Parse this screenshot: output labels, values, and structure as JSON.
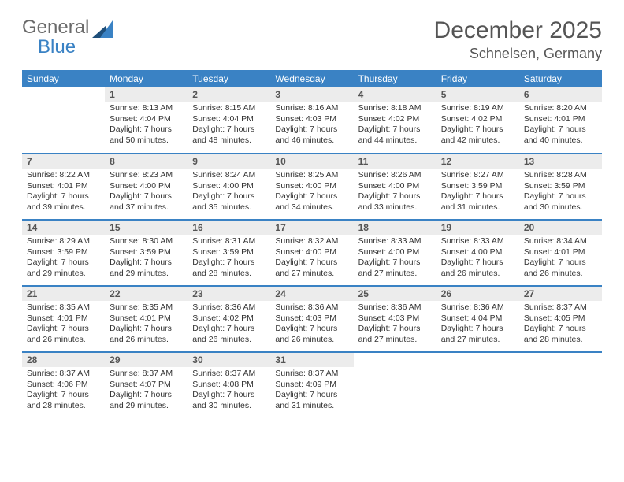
{
  "logo": {
    "line1": "General",
    "line2": "Blue"
  },
  "title": "December 2025",
  "location": "Schnelsen, Germany",
  "colors": {
    "header_bg": "#3a82c4",
    "header_text": "#ffffff",
    "daynum_bg": "#ececec",
    "text": "#333333",
    "row_border": "#3a82c4"
  },
  "weekdays": [
    "Sunday",
    "Monday",
    "Tuesday",
    "Wednesday",
    "Thursday",
    "Friday",
    "Saturday"
  ],
  "weeks": [
    [
      null,
      {
        "d": "1",
        "sr": "Sunrise: 8:13 AM",
        "ss": "Sunset: 4:04 PM",
        "dl1": "Daylight: 7 hours",
        "dl2": "and 50 minutes."
      },
      {
        "d": "2",
        "sr": "Sunrise: 8:15 AM",
        "ss": "Sunset: 4:04 PM",
        "dl1": "Daylight: 7 hours",
        "dl2": "and 48 minutes."
      },
      {
        "d": "3",
        "sr": "Sunrise: 8:16 AM",
        "ss": "Sunset: 4:03 PM",
        "dl1": "Daylight: 7 hours",
        "dl2": "and 46 minutes."
      },
      {
        "d": "4",
        "sr": "Sunrise: 8:18 AM",
        "ss": "Sunset: 4:02 PM",
        "dl1": "Daylight: 7 hours",
        "dl2": "and 44 minutes."
      },
      {
        "d": "5",
        "sr": "Sunrise: 8:19 AM",
        "ss": "Sunset: 4:02 PM",
        "dl1": "Daylight: 7 hours",
        "dl2": "and 42 minutes."
      },
      {
        "d": "6",
        "sr": "Sunrise: 8:20 AM",
        "ss": "Sunset: 4:01 PM",
        "dl1": "Daylight: 7 hours",
        "dl2": "and 40 minutes."
      }
    ],
    [
      {
        "d": "7",
        "sr": "Sunrise: 8:22 AM",
        "ss": "Sunset: 4:01 PM",
        "dl1": "Daylight: 7 hours",
        "dl2": "and 39 minutes."
      },
      {
        "d": "8",
        "sr": "Sunrise: 8:23 AM",
        "ss": "Sunset: 4:00 PM",
        "dl1": "Daylight: 7 hours",
        "dl2": "and 37 minutes."
      },
      {
        "d": "9",
        "sr": "Sunrise: 8:24 AM",
        "ss": "Sunset: 4:00 PM",
        "dl1": "Daylight: 7 hours",
        "dl2": "and 35 minutes."
      },
      {
        "d": "10",
        "sr": "Sunrise: 8:25 AM",
        "ss": "Sunset: 4:00 PM",
        "dl1": "Daylight: 7 hours",
        "dl2": "and 34 minutes."
      },
      {
        "d": "11",
        "sr": "Sunrise: 8:26 AM",
        "ss": "Sunset: 4:00 PM",
        "dl1": "Daylight: 7 hours",
        "dl2": "and 33 minutes."
      },
      {
        "d": "12",
        "sr": "Sunrise: 8:27 AM",
        "ss": "Sunset: 3:59 PM",
        "dl1": "Daylight: 7 hours",
        "dl2": "and 31 minutes."
      },
      {
        "d": "13",
        "sr": "Sunrise: 8:28 AM",
        "ss": "Sunset: 3:59 PM",
        "dl1": "Daylight: 7 hours",
        "dl2": "and 30 minutes."
      }
    ],
    [
      {
        "d": "14",
        "sr": "Sunrise: 8:29 AM",
        "ss": "Sunset: 3:59 PM",
        "dl1": "Daylight: 7 hours",
        "dl2": "and 29 minutes."
      },
      {
        "d": "15",
        "sr": "Sunrise: 8:30 AM",
        "ss": "Sunset: 3:59 PM",
        "dl1": "Daylight: 7 hours",
        "dl2": "and 29 minutes."
      },
      {
        "d": "16",
        "sr": "Sunrise: 8:31 AM",
        "ss": "Sunset: 3:59 PM",
        "dl1": "Daylight: 7 hours",
        "dl2": "and 28 minutes."
      },
      {
        "d": "17",
        "sr": "Sunrise: 8:32 AM",
        "ss": "Sunset: 4:00 PM",
        "dl1": "Daylight: 7 hours",
        "dl2": "and 27 minutes."
      },
      {
        "d": "18",
        "sr": "Sunrise: 8:33 AM",
        "ss": "Sunset: 4:00 PM",
        "dl1": "Daylight: 7 hours",
        "dl2": "and 27 minutes."
      },
      {
        "d": "19",
        "sr": "Sunrise: 8:33 AM",
        "ss": "Sunset: 4:00 PM",
        "dl1": "Daylight: 7 hours",
        "dl2": "and 26 minutes."
      },
      {
        "d": "20",
        "sr": "Sunrise: 8:34 AM",
        "ss": "Sunset: 4:01 PM",
        "dl1": "Daylight: 7 hours",
        "dl2": "and 26 minutes."
      }
    ],
    [
      {
        "d": "21",
        "sr": "Sunrise: 8:35 AM",
        "ss": "Sunset: 4:01 PM",
        "dl1": "Daylight: 7 hours",
        "dl2": "and 26 minutes."
      },
      {
        "d": "22",
        "sr": "Sunrise: 8:35 AM",
        "ss": "Sunset: 4:01 PM",
        "dl1": "Daylight: 7 hours",
        "dl2": "and 26 minutes."
      },
      {
        "d": "23",
        "sr": "Sunrise: 8:36 AM",
        "ss": "Sunset: 4:02 PM",
        "dl1": "Daylight: 7 hours",
        "dl2": "and 26 minutes."
      },
      {
        "d": "24",
        "sr": "Sunrise: 8:36 AM",
        "ss": "Sunset: 4:03 PM",
        "dl1": "Daylight: 7 hours",
        "dl2": "and 26 minutes."
      },
      {
        "d": "25",
        "sr": "Sunrise: 8:36 AM",
        "ss": "Sunset: 4:03 PM",
        "dl1": "Daylight: 7 hours",
        "dl2": "and 27 minutes."
      },
      {
        "d": "26",
        "sr": "Sunrise: 8:36 AM",
        "ss": "Sunset: 4:04 PM",
        "dl1": "Daylight: 7 hours",
        "dl2": "and 27 minutes."
      },
      {
        "d": "27",
        "sr": "Sunrise: 8:37 AM",
        "ss": "Sunset: 4:05 PM",
        "dl1": "Daylight: 7 hours",
        "dl2": "and 28 minutes."
      }
    ],
    [
      {
        "d": "28",
        "sr": "Sunrise: 8:37 AM",
        "ss": "Sunset: 4:06 PM",
        "dl1": "Daylight: 7 hours",
        "dl2": "and 28 minutes."
      },
      {
        "d": "29",
        "sr": "Sunrise: 8:37 AM",
        "ss": "Sunset: 4:07 PM",
        "dl1": "Daylight: 7 hours",
        "dl2": "and 29 minutes."
      },
      {
        "d": "30",
        "sr": "Sunrise: 8:37 AM",
        "ss": "Sunset: 4:08 PM",
        "dl1": "Daylight: 7 hours",
        "dl2": "and 30 minutes."
      },
      {
        "d": "31",
        "sr": "Sunrise: 8:37 AM",
        "ss": "Sunset: 4:09 PM",
        "dl1": "Daylight: 7 hours",
        "dl2": "and 31 minutes."
      },
      null,
      null,
      null
    ]
  ]
}
